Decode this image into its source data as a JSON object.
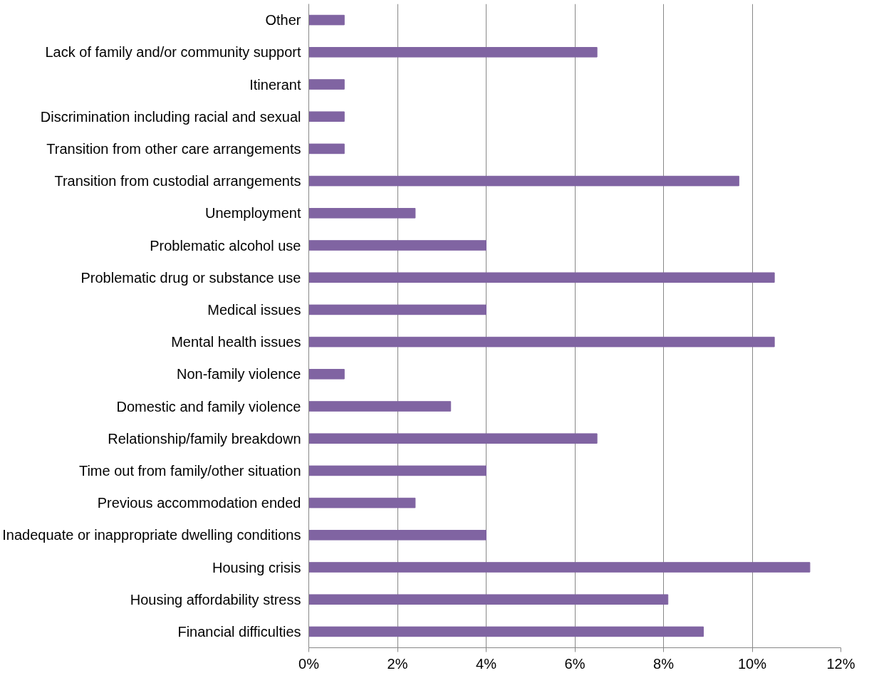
{
  "chart_data": {
    "type": "bar",
    "orientation": "horizontal",
    "categories": [
      "Other",
      "Lack of family and/or community support",
      "Itinerant",
      "Discrimination including racial and sexual",
      "Transition from other care arrangements",
      "Transition from custodial arrangements",
      "Unemployment",
      "Problematic alcohol use",
      "Problematic drug or substance use",
      "Medical issues",
      "Mental health issues",
      "Non-family violence",
      "Domestic and family violence",
      "Relationship/family breakdown",
      "Time out from family/other situation",
      "Previous accommodation ended",
      "Inadequate or inappropriate dwelling conditions",
      "Housing crisis",
      "Housing affordability stress",
      "Financial difficulties"
    ],
    "values": [
      0.8,
      6.5,
      0.8,
      0.8,
      0.8,
      9.7,
      2.4,
      4.0,
      10.5,
      4.0,
      10.5,
      0.8,
      3.2,
      6.5,
      4.0,
      2.4,
      4.0,
      11.3,
      8.1,
      8.9
    ],
    "color": "#8064a2",
    "xlim": [
      0,
      12
    ],
    "xticks": [
      {
        "value": 0,
        "label": "0%"
      },
      {
        "value": 2,
        "label": "2%"
      },
      {
        "value": 4,
        "label": "4%"
      },
      {
        "value": 6,
        "label": "6%"
      },
      {
        "value": 8,
        "label": "8%"
      },
      {
        "value": 10,
        "label": "10%"
      },
      {
        "value": 12,
        "label": "12%"
      }
    ],
    "grid": "x"
  }
}
